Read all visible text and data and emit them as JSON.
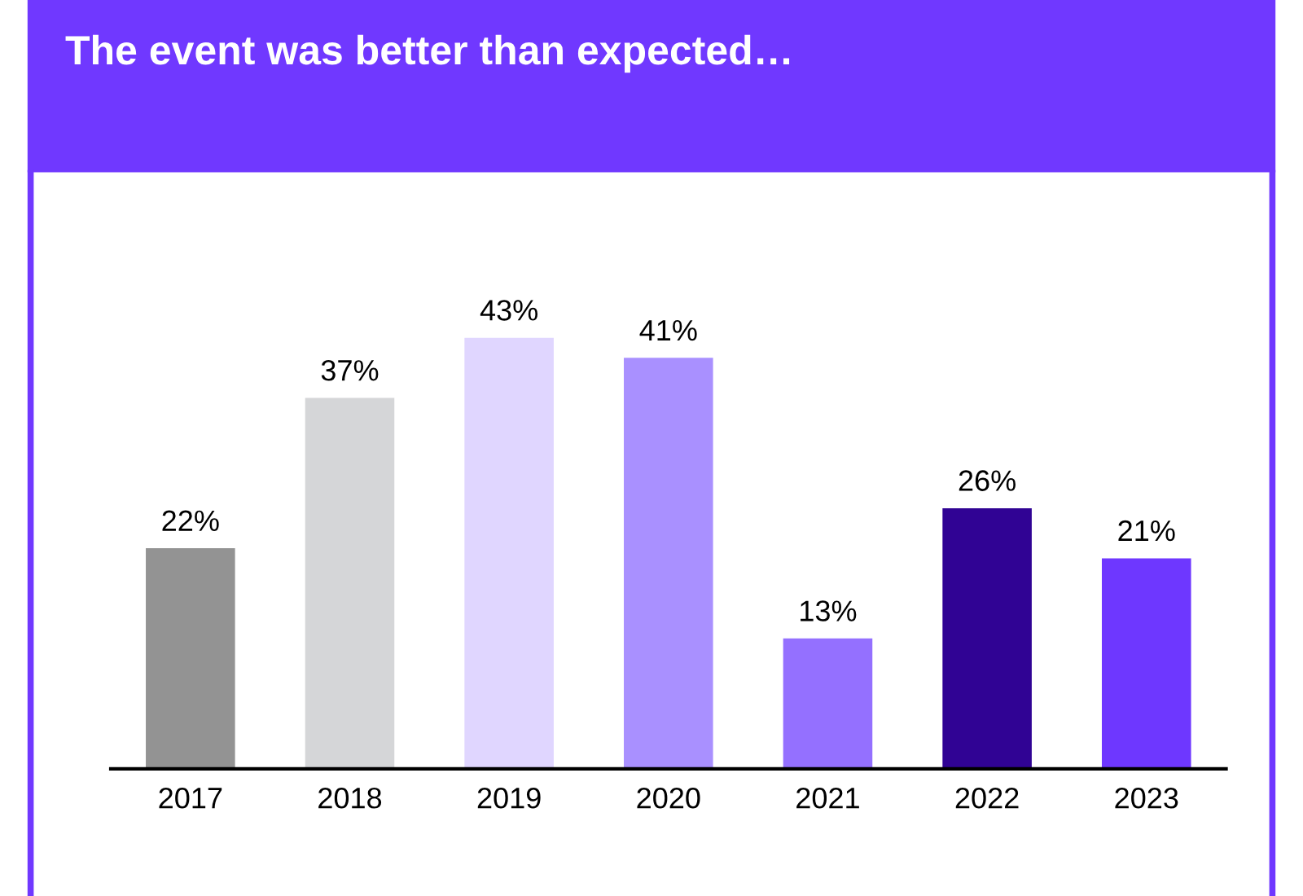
{
  "chart_data": {
    "type": "bar",
    "title": "The event was better than expected…",
    "categories": [
      "2017",
      "2018",
      "2019",
      "2020",
      "2021",
      "2022",
      "2023"
    ],
    "values": [
      22,
      37,
      43,
      41,
      13,
      26,
      21
    ],
    "colors": [
      "#939393",
      "#d5d6d8",
      "#e0d6ff",
      "#a990ff",
      "#9470ff",
      "#300394",
      "#6e37ff"
    ],
    "value_labels": [
      "22%",
      "37%",
      "43%",
      "41%",
      "13%",
      "26%",
      "21%"
    ]
  }
}
